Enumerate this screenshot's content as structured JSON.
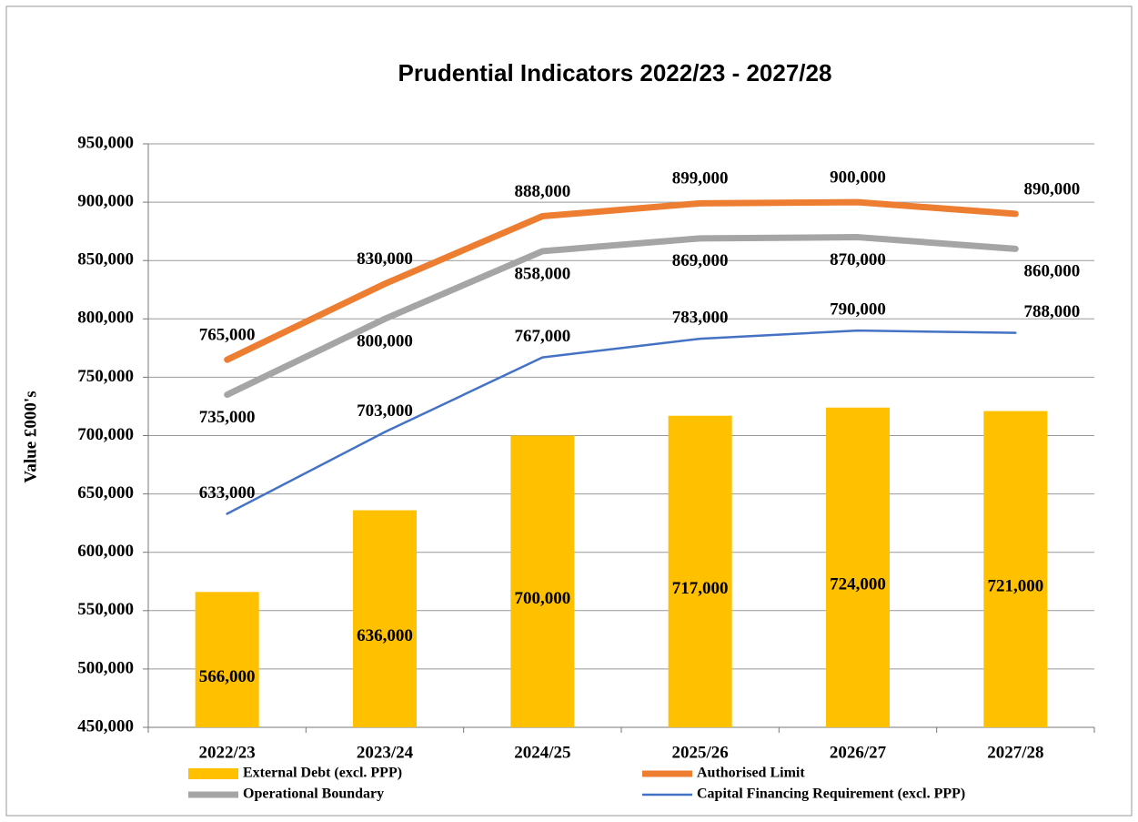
{
  "chart_data": {
    "type": "bar",
    "title": "Prudential Indicators  2022/23 - 2027/28",
    "y_label": "Value £000's",
    "categories": [
      "2022/23",
      "2023/24",
      "2024/25",
      "2025/26",
      "2026/27",
      "2027/28"
    ],
    "ylim": [
      450000,
      950000
    ],
    "yticks": [
      {
        "value": 450000,
        "label": "450,000"
      },
      {
        "value": 500000,
        "label": "500,000"
      },
      {
        "value": 550000,
        "label": "550,000"
      },
      {
        "value": 600000,
        "label": "600,000"
      },
      {
        "value": 650000,
        "label": "650,000"
      },
      {
        "value": 700000,
        "label": "700,000"
      },
      {
        "value": 750000,
        "label": "750,000"
      },
      {
        "value": 800000,
        "label": "800,000"
      },
      {
        "value": 850000,
        "label": "850,000"
      },
      {
        "value": 900000,
        "label": "900,000"
      },
      {
        "value": 950000,
        "label": "950,000"
      }
    ],
    "grid": true,
    "series": [
      {
        "name": "External Debt (excl. PPP)",
        "type": "bar",
        "color": "#FFC000",
        "values": [
          566000,
          636000,
          700000,
          717000,
          724000,
          721000
        ],
        "value_labels": [
          "566,000",
          "636,000",
          "700,000",
          "717,000",
          "724,000",
          "721,000"
        ]
      },
      {
        "name": "Authorised Limit",
        "type": "line",
        "color": "#ED7D31",
        "values": [
          765000,
          830000,
          888000,
          899000,
          900000,
          890000
        ],
        "value_labels": [
          "765,000",
          "830,000",
          "888,000",
          "899,000",
          "900,000",
          "890,000"
        ]
      },
      {
        "name": "Operational Boundary",
        "type": "line",
        "color": "#A5A5A5",
        "values": [
          735000,
          800000,
          858000,
          869000,
          870000,
          860000
        ],
        "value_labels": [
          "735,000",
          "800,000",
          "858,000",
          "869,000",
          "870,000",
          "860,000"
        ]
      },
      {
        "name": "Capital Financing Requirement (excl. PPP)",
        "type": "line",
        "color": "#4472C4",
        "values": [
          633000,
          703000,
          767000,
          783000,
          790000,
          788000
        ],
        "value_labels": [
          "633,000",
          "703,000",
          "767,000",
          "783,000",
          "790,000",
          "788,000"
        ]
      }
    ]
  }
}
